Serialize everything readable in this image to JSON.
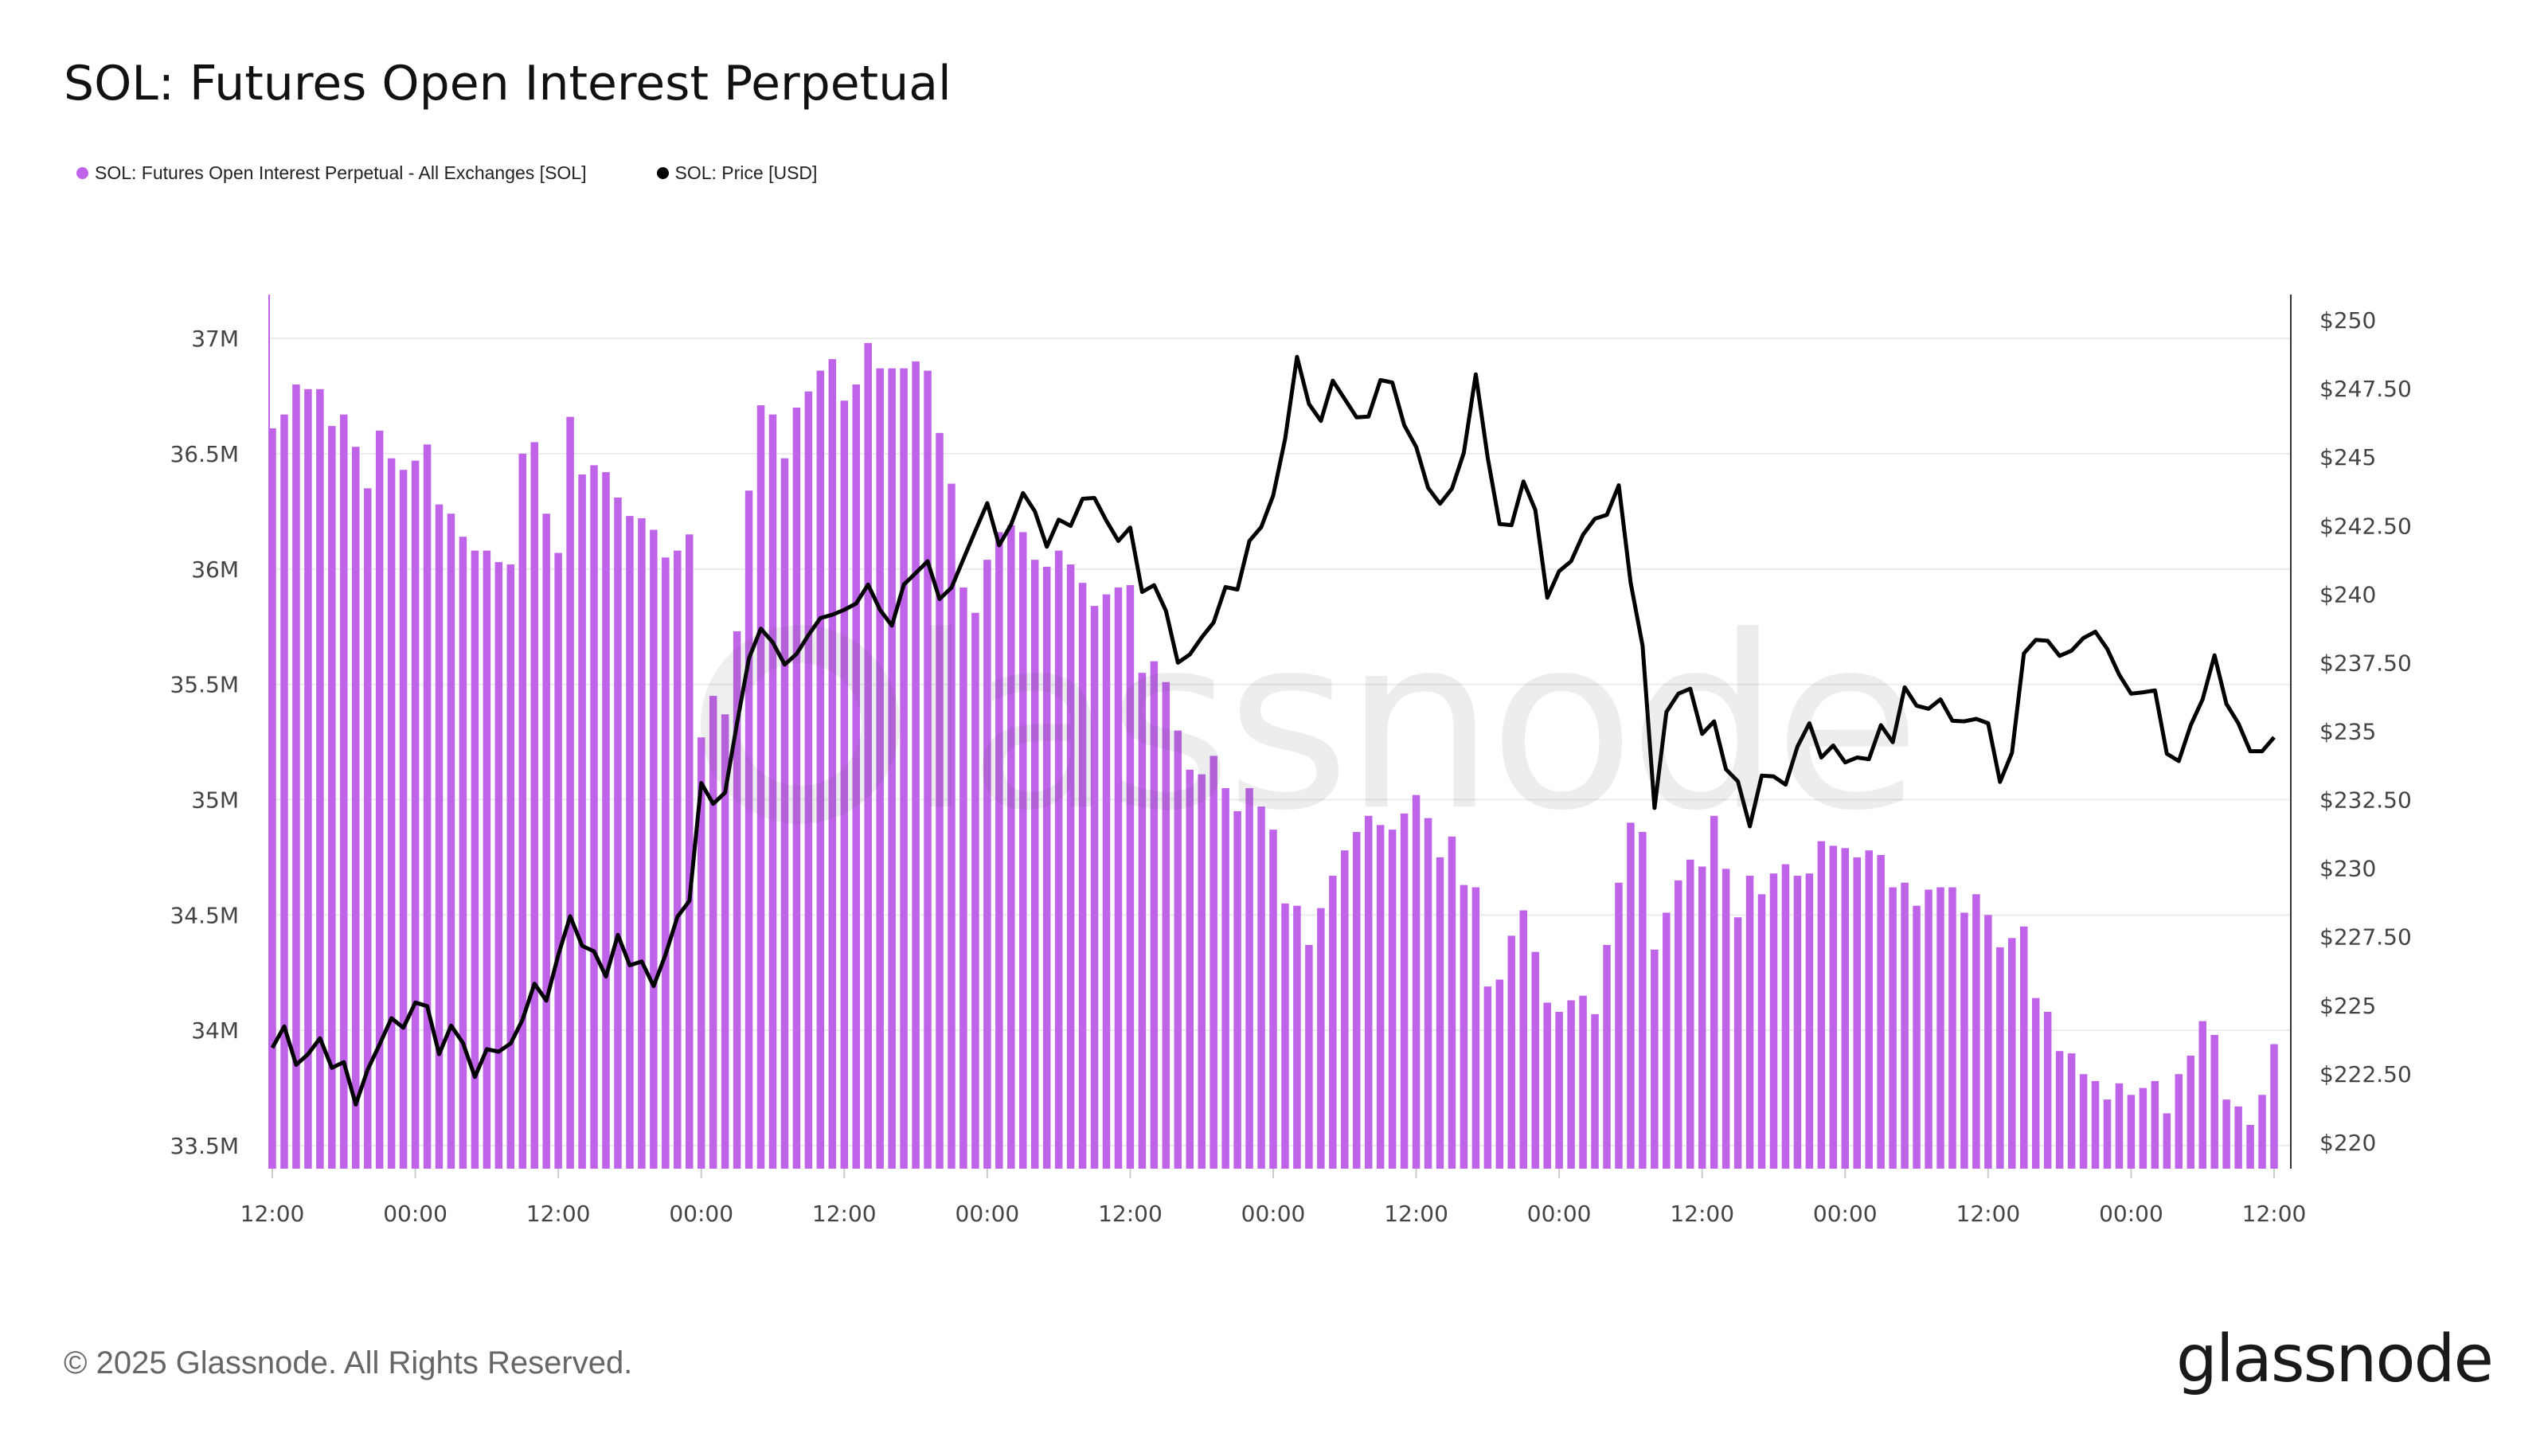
{
  "title": "SOL: Futures Open Interest Perpetual",
  "legend": [
    {
      "label": "SOL: Futures Open Interest Perpetual - All Exchanges [SOL]",
      "color": "#bf63e9"
    },
    {
      "label": "SOL: Price [USD]",
      "color": "#000000"
    }
  ],
  "footer": {
    "copyright": "© 2025 Glassnode. All Rights Reserved.",
    "logo": "glassnode"
  },
  "watermark": "glassnode",
  "chart_data": {
    "type": "bar+line",
    "title": "SOL: Futures Open Interest Perpetual",
    "grid": true,
    "legend_position": "top-left",
    "x_tick_labels": [
      "12:00",
      "00:00",
      "12:00",
      "00:00",
      "12:00",
      "00:00",
      "12:00",
      "00:00",
      "12:00",
      "00:00",
      "12:00",
      "00:00",
      "12:00",
      "00:00",
      "12:00"
    ],
    "x_interval": "1h",
    "y_left": {
      "ticks": [
        33.5,
        34,
        34.5,
        35,
        35.5,
        36,
        36.5,
        37
      ],
      "tick_labels": [
        "33.5M",
        "34M",
        "34.5M",
        "35M",
        "35.5M",
        "36M",
        "36.5M",
        "37M"
      ],
      "range": [
        33.4,
        37.19
      ],
      "unit": "M SOL"
    },
    "y_right": {
      "ticks": [
        220,
        222.5,
        225,
        227.5,
        230,
        232.5,
        235,
        237.5,
        240,
        242.5,
        245,
        247.5,
        250
      ],
      "tick_labels": [
        "$220",
        "$222.50",
        "$225",
        "$227.50",
        "$230",
        "$232.50",
        "$235",
        "$237.50",
        "$240",
        "$242.50",
        "$245",
        "$247.50",
        "$250"
      ],
      "range": [
        219.04,
        250.93
      ]
    },
    "series": [
      {
        "name": "SOL: Futures Open Interest Perpetual - All Exchanges [SOL]",
        "type": "bar",
        "axis": "left",
        "color": "#bf63e9",
        "values": [
          36.61,
          36.67,
          36.8,
          36.78,
          36.78,
          36.62,
          36.67,
          36.53,
          36.35,
          36.6,
          36.48,
          36.43,
          36.47,
          36.54,
          36.28,
          36.24,
          36.14,
          36.08,
          36.08,
          36.03,
          36.02,
          36.5,
          36.55,
          36.24,
          36.07,
          36.66,
          36.41,
          36.45,
          36.42,
          36.31,
          36.23,
          36.22,
          36.17,
          36.05,
          36.08,
          36.15,
          35.27,
          35.45,
          35.37,
          35.73,
          36.34,
          36.71,
          36.67,
          36.48,
          36.7,
          36.77,
          36.86,
          36.91,
          36.73,
          36.8,
          36.98,
          36.87,
          36.87,
          36.87,
          36.9,
          36.86,
          36.59,
          36.37,
          35.92,
          35.81,
          36.04,
          36.16,
          36.19,
          36.16,
          36.04,
          36.01,
          36.08,
          36.02,
          35.94,
          35.84,
          35.89,
          35.92,
          35.93,
          35.55,
          35.6,
          35.51,
          35.3,
          35.13,
          35.11,
          35.19,
          35.05,
          34.95,
          35.05,
          34.97,
          34.87,
          34.55,
          34.54,
          34.37,
          34.53,
          34.67,
          34.78,
          34.86,
          34.93,
          34.89,
          34.87,
          34.94,
          35.02,
          34.92,
          34.75,
          34.84,
          34.63,
          34.62,
          34.19,
          34.22,
          34.41,
          34.52,
          34.34,
          34.12,
          34.08,
          34.13,
          34.15,
          34.07,
          34.37,
          34.64,
          34.9,
          34.86,
          34.35,
          34.51,
          34.65,
          34.74,
          34.71,
          34.93,
          34.7,
          34.49,
          34.67,
          34.59,
          34.68,
          34.72,
          34.67,
          34.68,
          34.82,
          34.8,
          34.79,
          34.75,
          34.78,
          34.76,
          34.62,
          34.64,
          34.54,
          34.61,
          34.62,
          34.62,
          34.51,
          34.59,
          34.5,
          34.36,
          34.4,
          34.45,
          34.14,
          34.08,
          33.91,
          33.9,
          33.81,
          33.78,
          33.7,
          33.77,
          33.72,
          33.75,
          33.78,
          33.64,
          33.81,
          33.89,
          34.04,
          33.98,
          33.7,
          33.67,
          33.59,
          33.72,
          33.94
        ]
      },
      {
        "name": "SOL: Price [USD]",
        "type": "line",
        "axis": "right",
        "color": "#000000",
        "values": [
          223.45,
          224.23,
          222.83,
          223.22,
          223.8,
          222.72,
          222.93,
          221.38,
          222.65,
          223.57,
          224.53,
          224.18,
          225.1,
          224.97,
          223.22,
          224.26,
          223.63,
          222.39,
          223.4,
          223.31,
          223.61,
          224.48,
          225.79,
          225.17,
          226.83,
          228.25,
          227.17,
          226.97,
          226.05,
          227.57,
          226.46,
          226.6,
          225.7,
          226.85,
          228.23,
          228.81,
          233.11,
          232.35,
          232.76,
          235.29,
          237.66,
          238.74,
          238.24,
          237.43,
          237.82,
          238.51,
          239.13,
          239.25,
          239.43,
          239.66,
          240.35,
          239.43,
          238.85,
          240.35,
          240.77,
          241.2,
          239.82,
          240.24,
          241.28,
          242.31,
          243.32,
          241.78,
          242.54,
          243.69,
          243.02,
          241.73,
          242.72,
          242.49,
          243.48,
          243.51,
          242.68,
          241.94,
          242.43,
          240.08,
          240.33,
          239.39,
          237.5,
          237.8,
          238.42,
          238.97,
          240.26,
          240.17,
          241.94,
          242.45,
          243.6,
          245.67,
          248.66,
          246.94,
          246.32,
          247.79,
          247.12,
          246.45,
          246.48,
          247.81,
          247.72,
          246.16,
          245.37,
          243.88,
          243.3,
          243.85,
          245.16,
          248.02,
          244.98,
          242.56,
          242.52,
          244.11,
          243.07,
          239.87,
          240.84,
          241.2,
          242.17,
          242.75,
          242.89,
          243.97,
          240.42,
          238.12,
          232.2,
          235.7,
          236.37,
          236.55,
          234.9,
          235.36,
          233.61,
          233.17,
          231.53,
          233.38,
          233.35,
          233.05,
          234.44,
          235.29,
          234.04,
          234.48,
          233.86,
          234.04,
          233.98,
          235.22,
          234.6,
          236.6,
          235.93,
          235.82,
          236.16,
          235.38,
          235.36,
          235.45,
          235.29,
          233.15,
          234.21,
          237.84,
          238.33,
          238.3,
          237.75,
          237.94,
          238.4,
          238.63,
          238.0,
          237.06,
          236.37,
          236.42,
          236.49,
          234.18,
          233.91,
          235.22,
          236.16,
          237.77,
          236.0,
          235.29,
          234.27,
          234.27,
          234.78
        ]
      }
    ]
  }
}
